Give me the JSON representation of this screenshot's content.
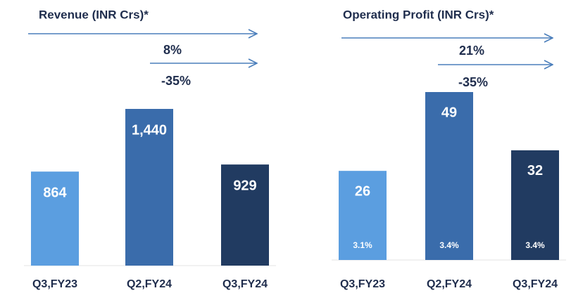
{
  "chart_data": [
    {
      "type": "bar",
      "title": "Revenue (INR Crs)*",
      "annotations": [
        "8%",
        "-35%"
      ],
      "categories": [
        "Q3,FY23",
        "Q2,FY24",
        "Q3,FY24"
      ],
      "values": [
        864,
        1440,
        929
      ],
      "value_labels": [
        "864",
        "1,440",
        "929"
      ],
      "colors": [
        "#5b9ee0",
        "#3a6cab",
        "#213b61"
      ]
    },
    {
      "type": "bar",
      "title": "Operating Profit (INR Crs)*",
      "annotations": [
        "21%",
        "-35%"
      ],
      "categories": [
        "Q3,FY23",
        "Q2,FY24",
        "Q3,FY24"
      ],
      "values": [
        26,
        49,
        32
      ],
      "margin_labels": [
        "3.1%",
        "3.4%",
        "3.4%"
      ],
      "colors": [
        "#5b9ee0",
        "#3a6cab",
        "#213b61"
      ]
    }
  ]
}
